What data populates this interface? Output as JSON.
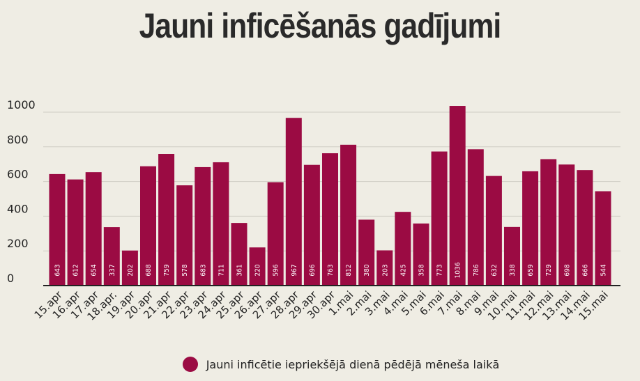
{
  "chart_data": {
    "type": "bar",
    "title": "Jauni inficēšanās gadījumi",
    "xlabel": "",
    "ylabel": "",
    "ylim": [
      0,
      1000
    ],
    "yticks": [
      0,
      200,
      400,
      600,
      800,
      1000
    ],
    "grid": true,
    "legend_placement": "bottom",
    "bar_color": "#9b0b43",
    "categories": [
      "15.apr",
      "16.apr",
      "17.apr",
      "18.apr.",
      "19.apr",
      "20.apr",
      "21.apr",
      "22.apr",
      "23.apr",
      "24.apr",
      "25.apr",
      "26.apr",
      "27.apr",
      "28.apr",
      "29.apr",
      "30.apr",
      "1.mai",
      "2.mai",
      "3.mai",
      "4.mai",
      "5.mai",
      "6.mai",
      "7.mai",
      "8.mai",
      "9.mai",
      "10.mai",
      "11.mai",
      "12.mai",
      "13.mai",
      "14.mai",
      "15.mai"
    ],
    "series": [
      {
        "name": "Jauni inficētie iepriekšējā dienā pēdējā mēneša laikā",
        "values": [
          643,
          612,
          654,
          337,
          202,
          688,
          759,
          578,
          683,
          711,
          361,
          220,
          596,
          967,
          696,
          763,
          812,
          380,
          203,
          425,
          358,
          773,
          1036,
          786,
          632,
          338,
          659,
          729,
          698,
          666,
          544
        ]
      }
    ]
  }
}
